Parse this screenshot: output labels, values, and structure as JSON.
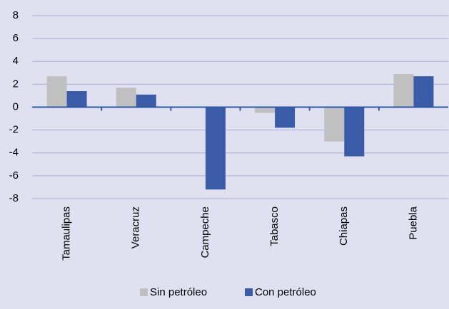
{
  "chart_data": {
    "type": "bar",
    "categories": [
      "Tamaulipas",
      "Veracruz",
      "Campeche",
      "Tabasco",
      "Chiapas",
      "Puebla"
    ],
    "series": [
      {
        "name": "Sin petróleo",
        "color": "#c0c0c0",
        "values": [
          2.7,
          1.7,
          0,
          -0.5,
          -3.0,
          2.9
        ]
      },
      {
        "name": "Con petróleo",
        "color": "#3a5ca8",
        "values": [
          1.4,
          1.1,
          -7.2,
          -1.8,
          -4.3,
          2.7
        ]
      }
    ],
    "ylim": [
      -8,
      8
    ],
    "yticks": [
      -8,
      -6,
      -4,
      -2,
      0,
      2,
      4,
      6,
      8
    ],
    "grid": true
  }
}
